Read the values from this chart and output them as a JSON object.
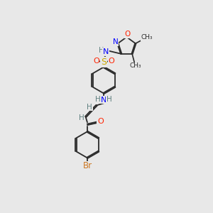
{
  "bg_color": "#e8e8e8",
  "bond_color": "#2a2a2a",
  "colors": {
    "N": "#0000ff",
    "O": "#ff2200",
    "S": "#ccaa00",
    "Br": "#cc7722",
    "C": "#2a2a2a",
    "H": "#5f8080"
  }
}
